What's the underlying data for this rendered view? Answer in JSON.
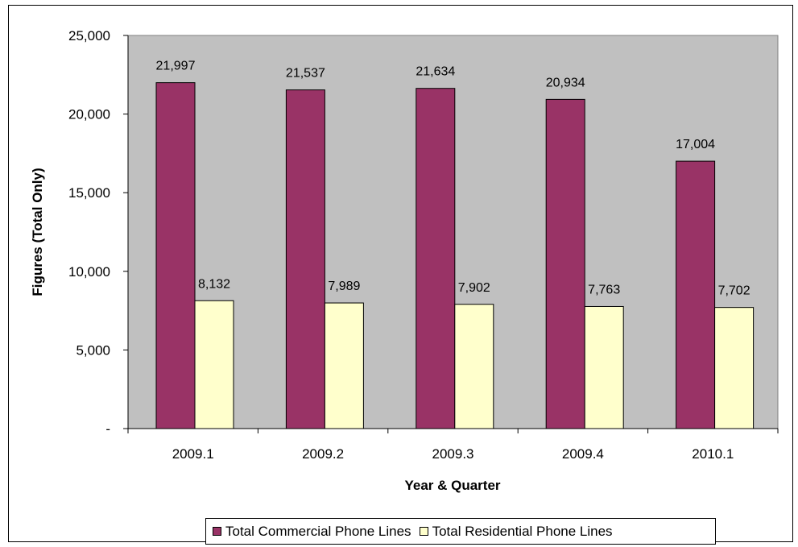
{
  "chart_data": {
    "type": "bar",
    "title": "",
    "xlabel": "Year & Quarter",
    "ylabel": "Figures (Total Only)",
    "categories": [
      "2009.1",
      "2009.2",
      "2009.3",
      "2009.4",
      "2010.1"
    ],
    "series": [
      {
        "name": "Total Commercial Phone Lines",
        "color": "#993366",
        "values": [
          21997,
          21537,
          21634,
          20934,
          17004
        ],
        "labels": [
          "21,997",
          "21,537",
          "21,634",
          "20,934",
          "17,004"
        ]
      },
      {
        "name": "Total Residential Phone Lines",
        "color": "#FFFFCC",
        "values": [
          8132,
          7989,
          7902,
          7763,
          7702
        ],
        "labels": [
          "8,132",
          "7,989",
          "7,902",
          "7,763",
          "7,702"
        ]
      }
    ],
    "ylim": [
      0,
      25000
    ],
    "yticks": [
      0,
      5000,
      10000,
      15000,
      20000,
      25000
    ],
    "ytick_labels": [
      "-",
      "5,000",
      "10,000",
      "15,000",
      "20,000",
      "25,000"
    ],
    "plot_background": "#C0C0C0",
    "grid": false,
    "legend_position": "bottom"
  }
}
